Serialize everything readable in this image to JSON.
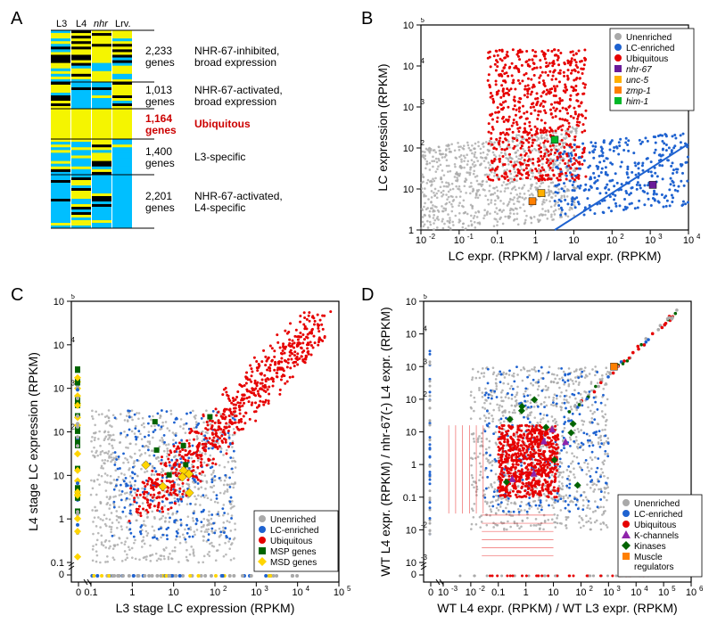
{
  "panelA": {
    "label": "A",
    "cols": [
      "L3",
      "L4",
      "nhr",
      "Lrv."
    ],
    "clusters": [
      {
        "count": "2,233",
        "count_label": "genes",
        "desc": "NHR-67-inhibited,\nbroad expression",
        "color": "#000"
      },
      {
        "count": "1,013",
        "count_label": "genes",
        "desc": "NHR-67-activated,\nbroad expression",
        "color": "#000"
      },
      {
        "count": "1,164",
        "count_label": "genes",
        "desc": "Ubiquitous",
        "color": "#cc0000",
        "bold": true
      },
      {
        "count": "1,400",
        "count_label": "genes",
        "desc": "L3-specific",
        "color": "#000"
      },
      {
        "count": "2,201",
        "count_label": "genes",
        "desc": "NHR-67-activated,\nL4-specific",
        "color": "#000"
      }
    ],
    "heatmap_bands": [
      {
        "h": 58,
        "cols": [
          "mix",
          "mix",
          "hi",
          "mix"
        ]
      },
      {
        "h": 30,
        "cols": [
          "mix",
          "lo",
          "lo",
          "mix"
        ]
      },
      {
        "h": 34,
        "cols": [
          "solid_hi",
          "solid_hi",
          "solid_hi",
          "solid_hi"
        ]
      },
      {
        "h": 40,
        "cols": [
          "lo",
          "lo",
          "mix",
          "lo"
        ]
      },
      {
        "h": 60,
        "cols": [
          "lo",
          "mix",
          "lo",
          "lo"
        ]
      }
    ],
    "colors": {
      "hi": "#f5f500",
      "lo": "#00bfff",
      "mid": "#000000"
    }
  },
  "panelB": {
    "label": "B",
    "xaxis": {
      "label": "LC expr. (RPKM) / larval expr. (RPKM)",
      "ticks": [
        "10",
        "10",
        "0.1",
        "1",
        "10",
        "10",
        "10",
        "10"
      ],
      "exp": [
        "-2",
        "-1",
        "",
        "",
        "",
        "2",
        "3",
        "4"
      ]
    },
    "yaxis": {
      "label": "LC expression (RPKM)",
      "ticks": [
        "1",
        "10",
        "10",
        "10",
        "10",
        "10"
      ],
      "exp": [
        "",
        "",
        "2",
        "3",
        "4",
        "5"
      ]
    },
    "legend": [
      {
        "label": "Unenriched",
        "color": "#a9a9a9",
        "shape": "circle"
      },
      {
        "label": "LC-enriched",
        "color": "#1e62d0",
        "shape": "circle"
      },
      {
        "label": "Ubiquitous",
        "color": "#e60000",
        "shape": "circle"
      },
      {
        "label": "nhr-67",
        "color": "#6a1b9a",
        "shape": "square",
        "italic": true
      },
      {
        "label": "unc-5",
        "color": "#ffb000",
        "shape": "square",
        "italic": true
      },
      {
        "label": "zmp-1",
        "color": "#ff7f00",
        "shape": "square",
        "italic": true
      },
      {
        "label": "him-1",
        "color": "#00b828",
        "shape": "square",
        "italic": true
      }
    ]
  },
  "panelC": {
    "label": "C",
    "xaxis": {
      "label": "L3 stage LC expression (RPKM)",
      "ticks": [
        "0",
        "0.1",
        "1",
        "10",
        "10",
        "10",
        "10",
        "10"
      ],
      "exp": [
        "",
        "",
        "",
        "",
        "2",
        "3",
        "4",
        "5"
      ]
    },
    "yaxis": {
      "label": "L4 stage LC expression (RPKM)",
      "ticks": [
        "0",
        "0.1",
        "1",
        "10",
        "10",
        "10",
        "10",
        "10"
      ],
      "exp": [
        "",
        "",
        "",
        "",
        "2",
        "3",
        "4",
        "5"
      ]
    },
    "legend": [
      {
        "label": "Unenriched",
        "color": "#a9a9a9",
        "shape": "circle"
      },
      {
        "label": "LC-enriched",
        "color": "#1e62d0",
        "shape": "circle"
      },
      {
        "label": "Ubiquitous",
        "color": "#e60000",
        "shape": "circle"
      },
      {
        "label": "MSP genes",
        "color": "#006400",
        "shape": "square"
      },
      {
        "label": "MSD genes",
        "color": "#ffd500",
        "shape": "diamond"
      }
    ]
  },
  "panelD": {
    "label": "D",
    "xaxis": {
      "label": "WT L4 expr. (RPKM) / WT L3 expr. (RPKM)",
      "ticks": [
        "0",
        "10",
        "10",
        "0.1",
        "1",
        "10",
        "10",
        "10",
        "10",
        "10",
        "10"
      ],
      "exp": [
        "",
        "-3",
        "-2",
        "",
        "",
        "",
        "2",
        "3",
        "4",
        "5",
        "6"
      ]
    },
    "yaxis": {
      "label": "WT L4 expr. (RPKM) / nhr-67(-) L4 expr. (RPKM)",
      "ticks": [
        "0",
        "10",
        "10",
        "0.1",
        "1",
        "10",
        "10",
        "10",
        "10",
        "10"
      ],
      "exp": [
        "",
        "-3",
        "-2",
        "",
        "",
        "",
        "2",
        "3",
        "4",
        "5"
      ]
    },
    "legend": [
      {
        "label": "Unenriched",
        "color": "#a9a9a9",
        "shape": "circle"
      },
      {
        "label": "LC-enriched",
        "color": "#1e62d0",
        "shape": "circle"
      },
      {
        "label": "Ubiquitous",
        "color": "#e60000",
        "shape": "circle"
      },
      {
        "label": "K-channels",
        "color": "#8e24aa",
        "shape": "triangle"
      },
      {
        "label": "Kinases",
        "color": "#006400",
        "shape": "diamond"
      },
      {
        "label": "Muscle\nregulators",
        "color": "#ff7f00",
        "shape": "square"
      }
    ]
  },
  "colors": {
    "unenriched": "#a9a9a9",
    "lc": "#1e62d0",
    "ubiq": "#e60000",
    "msp": "#006400",
    "msd": "#ffd500",
    "kch": "#8e24aa",
    "kin": "#006400",
    "muscle": "#ff7f00"
  }
}
